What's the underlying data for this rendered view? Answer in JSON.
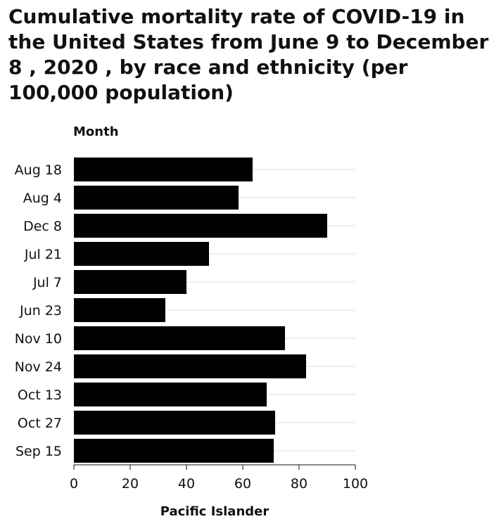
{
  "chart_data": {
    "type": "bar",
    "orientation": "horizontal",
    "title": "Cumulative mortality rate of COVID-19 in the United States from June 9 to December 8 , 2020 , by race and ethnicity (per 100,000 population)",
    "ylabel": "Month",
    "xlabel": "Pacific Islander",
    "categories": [
      "Aug 18",
      "Aug 4",
      "Dec 8",
      "Jul 21",
      "Jul 7",
      "Jun 23",
      "Nov 10",
      "Nov 24",
      "Oct 13",
      "Oct 27",
      "Sep 15"
    ],
    "values": [
      63.5,
      58.5,
      90,
      48,
      40,
      32.5,
      75,
      82.5,
      68.5,
      71.5,
      71
    ],
    "xlim": [
      0,
      100
    ],
    "xticks": [
      0,
      20,
      40,
      60,
      80,
      100
    ],
    "grid": true,
    "colors": {
      "bar": "#000000",
      "grid": "#dddddd",
      "axis": "#111111"
    }
  }
}
